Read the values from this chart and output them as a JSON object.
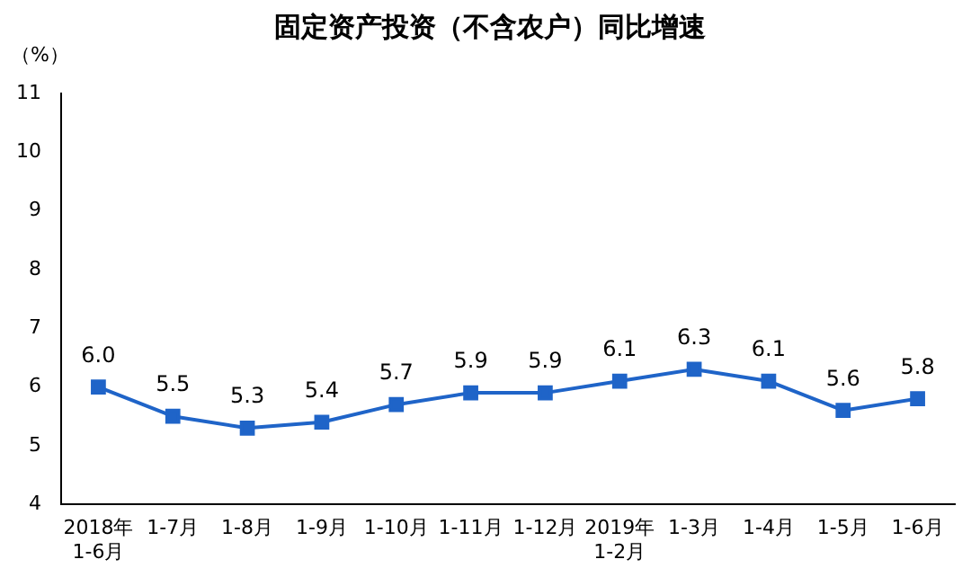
{
  "chart_data": {
    "type": "line",
    "title": "固定资产投资（不含农户）同比增速",
    "ylabel": "（%）",
    "categories": [
      "2018年\n1-6月",
      "1-7月",
      "1-8月",
      "1-9月",
      "1-10月",
      "1-11月",
      "1-12月",
      "2019年\n1-2月",
      "1-3月",
      "1-4月",
      "1-5月",
      "1-6月"
    ],
    "series": [
      {
        "color": "#1f64c8",
        "values": [
          6.0,
          5.5,
          5.3,
          5.4,
          5.7,
          5.9,
          5.9,
          6.1,
          6.3,
          6.1,
          5.6,
          5.8
        ],
        "value_labels": [
          "6.0",
          "5.5",
          "5.3",
          "5.4",
          "5.7",
          "5.9",
          "5.9",
          "6.1",
          "6.3",
          "6.1",
          "5.6",
          "5.8"
        ]
      }
    ],
    "ylim": [
      4,
      11
    ],
    "yticks": [
      4,
      5,
      6,
      7,
      8,
      9,
      10,
      11
    ],
    "grid": false,
    "legend": false,
    "marker": "square",
    "line_style": "solid"
  }
}
